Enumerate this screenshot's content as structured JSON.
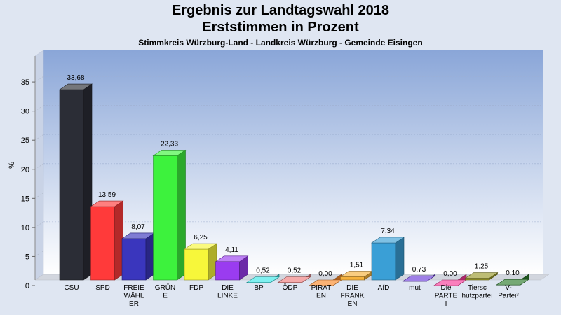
{
  "titles": {
    "line1": "Ergebnis zur Landtagswahl 2018",
    "line2": "Erststimmen in Prozent",
    "subtitle": "Stimmkreis Würzburg-Land - Landkreis Würzburg - Gemeinde Eisingen"
  },
  "chart_data": {
    "type": "bar",
    "ylabel": "%",
    "ylim": [
      0,
      38.5
    ],
    "yticks": [
      0,
      5,
      10,
      15,
      20,
      25,
      30,
      35
    ],
    "grid": true,
    "categories": [
      [
        "CSU"
      ],
      [
        "SPD"
      ],
      [
        "FREIE",
        "WÄHL",
        "ER"
      ],
      [
        "GRÜN",
        "E"
      ],
      [
        "FDP"
      ],
      [
        "DIE",
        "LINKE"
      ],
      [
        "BP"
      ],
      [
        "ÖDP"
      ],
      [
        "PIRAT",
        "EN"
      ],
      [
        "DIE",
        "FRANK",
        "EN"
      ],
      [
        "AfD"
      ],
      [
        "mut"
      ],
      [
        "Die",
        "PARTE",
        "I"
      ],
      [
        "Tiersc",
        "hutzpartei"
      ],
      [
        "V-",
        "Partei³"
      ]
    ],
    "values": [
      33.68,
      13.59,
      8.07,
      22.33,
      6.25,
      4.11,
      0.52,
      0.52,
      0.0,
      1.51,
      7.34,
      0.73,
      0.0,
      1.25,
      0.1
    ],
    "value_labels": [
      "33,68",
      "13,59",
      "8,07",
      "22,33",
      "6,25",
      "4,11",
      "0,52",
      "0,52",
      "0,00",
      "1,51",
      "7,34",
      "0,73",
      "0,00",
      "1,25",
      "0,10"
    ],
    "colors": [
      "#2b2d36",
      "#ff3a3a",
      "#3a36bd",
      "#3df23d",
      "#f7f73a",
      "#9a3cf0",
      "#3ae8e8",
      "#ef7c7c",
      "#fb8a2a",
      "#f5b23c",
      "#3a9fd6",
      "#6a3ad8",
      "#f83a9a",
      "#9a9a2a",
      "#2a7a2a"
    ]
  }
}
